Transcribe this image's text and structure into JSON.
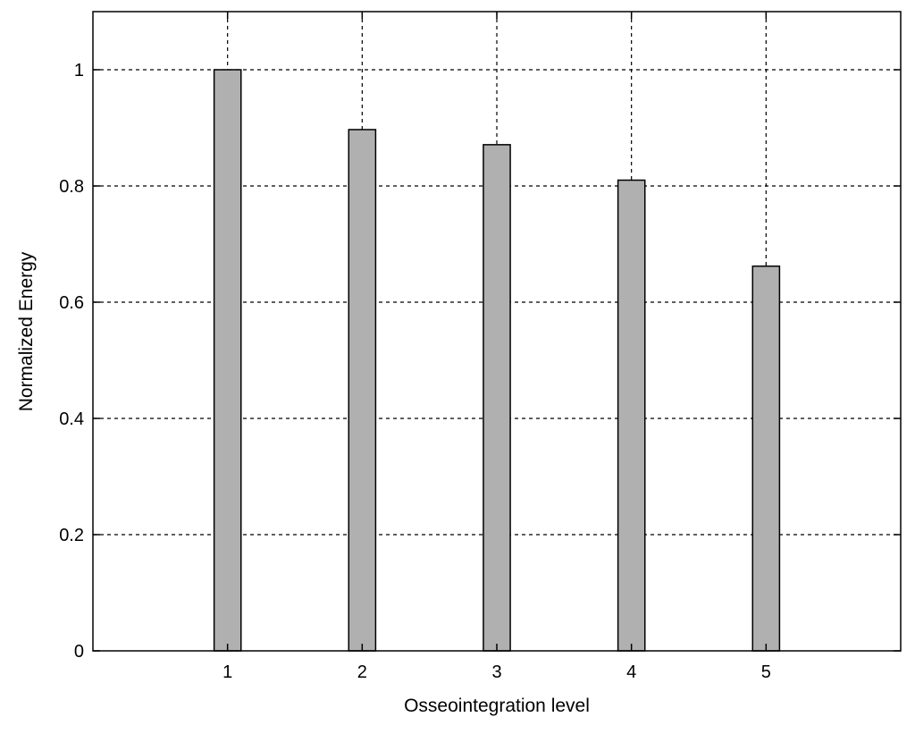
{
  "chart_data": {
    "type": "bar",
    "categories": [
      "1",
      "2",
      "3",
      "4",
      "5"
    ],
    "values": [
      1.0,
      0.897,
      0.871,
      0.81,
      0.662
    ],
    "xlabel": "Osseointegration level",
    "ylabel": "Normalized Energy",
    "xlim": [
      0,
      6
    ],
    "ylim": [
      0,
      1.1
    ],
    "yticks": [
      0,
      0.2,
      0.4,
      0.6,
      0.8,
      1
    ],
    "ytick_labels": [
      "0",
      "0.2",
      "0.4",
      "0.6",
      "0.8",
      "1"
    ],
    "xticks": [
      1,
      2,
      3,
      4,
      5
    ],
    "xtick_labels": [
      "1",
      "2",
      "3",
      "4",
      "5"
    ],
    "grid": true,
    "grid_style": "dashed",
    "bar_color": "#b0b0b0",
    "bar_edge_color": "#000000"
  }
}
